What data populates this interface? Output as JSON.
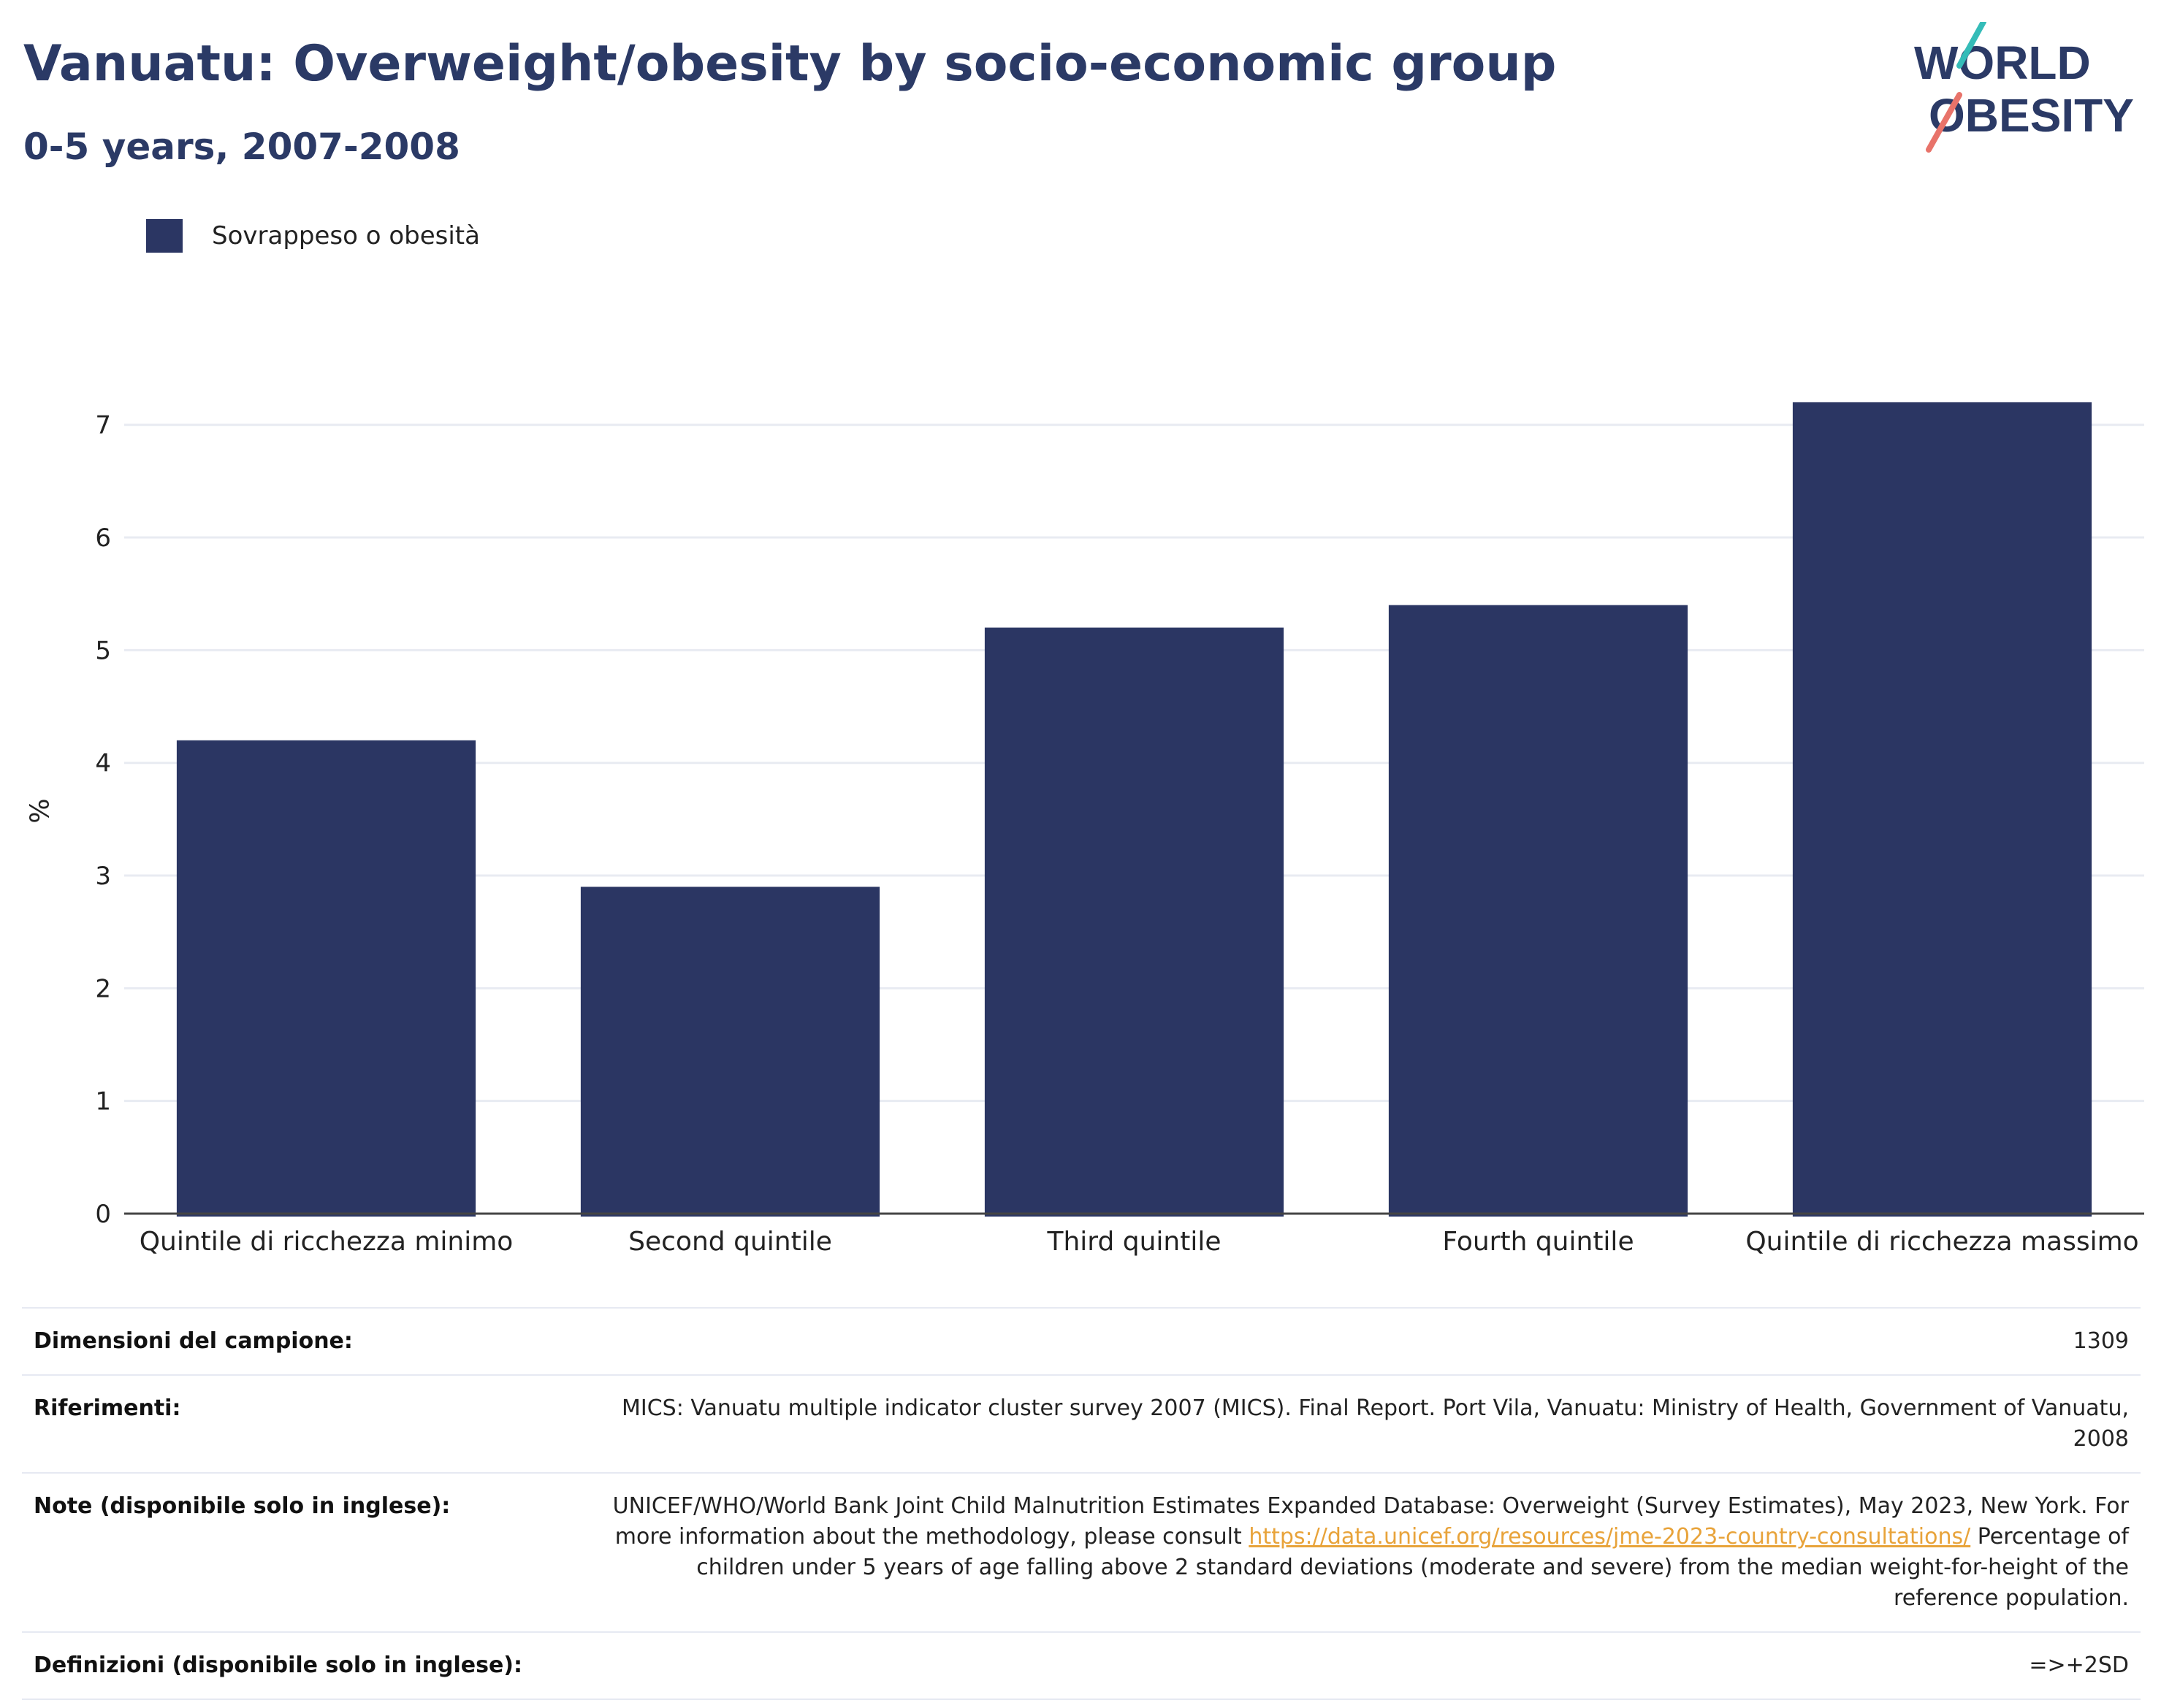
{
  "header": {
    "title": "Vanuatu: Overweight/obesity by socio-economic group",
    "subtitle": "0-5 years, 2007-2008"
  },
  "logo": {
    "line1": "WORLD",
    "line2": "OBESITY"
  },
  "colors": {
    "bar": "#2b3663",
    "title": "#2b3a66",
    "grid": "#e8ebf2",
    "link": "#e8a33a"
  },
  "chart_data": {
    "type": "bar",
    "categories": [
      "Quintile di ricchezza minimo",
      "Second quintile",
      "Third quintile",
      "Fourth quintile",
      "Quintile di ricchezza massimo"
    ],
    "series": [
      {
        "name": "Sovrappeso o obesità",
        "values": [
          4.2,
          2.9,
          5.2,
          5.4,
          7.2
        ]
      }
    ],
    "ylabel": "%",
    "ylim": [
      0,
      7.4
    ],
    "yticks": [
      0,
      1,
      2,
      3,
      4,
      5,
      6,
      7
    ],
    "grid": true,
    "legend": "top-left"
  },
  "info": {
    "sample_label": "Dimensioni del campione:",
    "sample_value": "1309",
    "refs_label": "Riferimenti:",
    "refs_value": "MICS: Vanuatu multiple indicator cluster survey 2007 (MICS). Final Report. Port Vila, Vanuatu: Ministry of Health, Government of Vanuatu, 2008",
    "notes_label": "Note (disponibile solo in inglese):",
    "notes_text1": "UNICEF/WHO/World Bank Joint Child Malnutrition Estimates Expanded Database: Overweight (Survey Estimates), May 2023, New York. For more information about the methodology, please consult ",
    "notes_link": "https://data.unicef.org/resources/jme-2023-country-consultations/",
    "notes_text2": " Percentage of children under 5 years of age falling above 2 standard deviations (moderate and severe) from the median weight-for-height of the reference population.",
    "defs_label": "Definizioni (disponibile solo in inglese):",
    "defs_value": "=>+2SD"
  }
}
